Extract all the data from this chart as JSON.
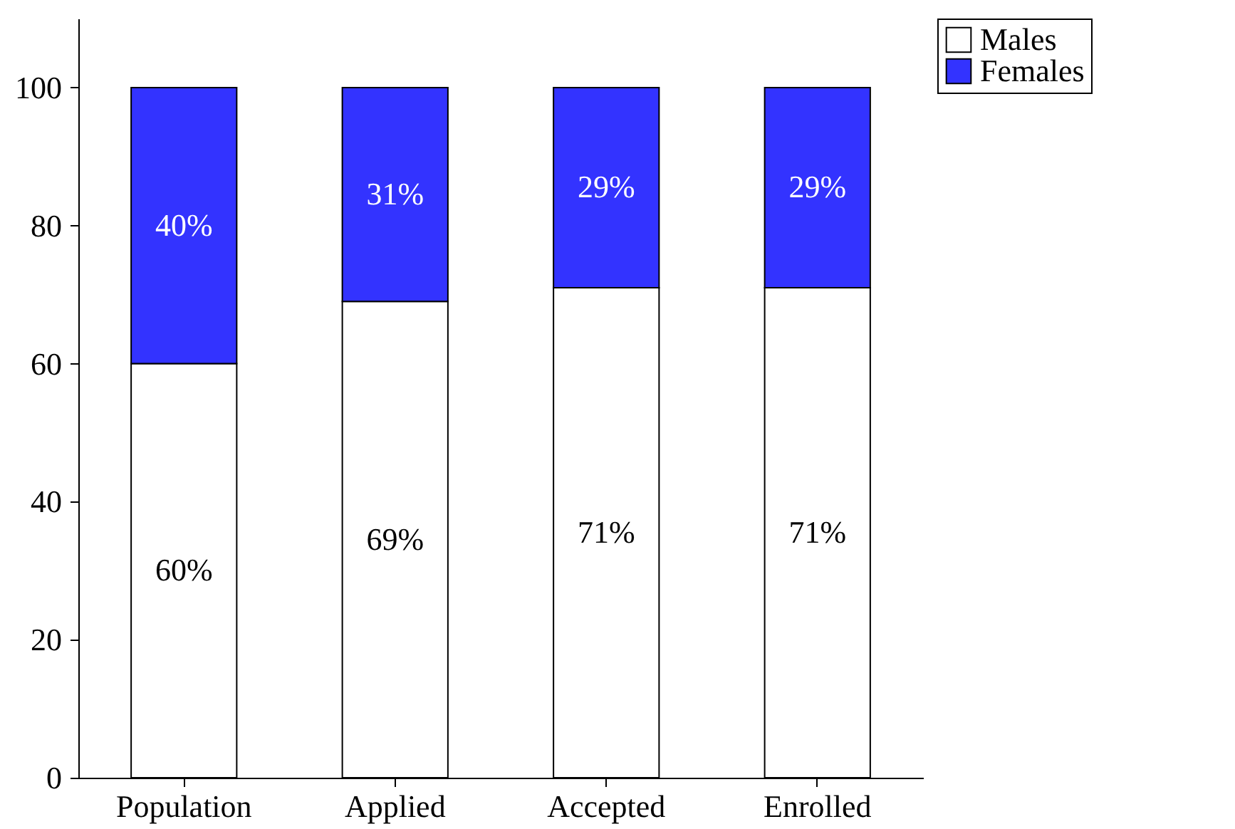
{
  "chart_data": {
    "type": "bar",
    "stacked": true,
    "categories": [
      "Population",
      "Applied",
      "Accepted",
      "Enrolled"
    ],
    "series": [
      {
        "name": "Males",
        "color": "#ffffff",
        "values": [
          60,
          69,
          71,
          71
        ],
        "value_labels": [
          "60%",
          "69%",
          "71%",
          "71%"
        ]
      },
      {
        "name": "Females",
        "color": "#3333ff",
        "values": [
          40,
          31,
          29,
          29
        ],
        "value_labels": [
          "40%",
          "31%",
          "29%",
          "29%"
        ]
      }
    ],
    "ylim": [
      0,
      110
    ],
    "yticks": [
      0,
      20,
      40,
      60,
      80,
      100
    ],
    "grid": false,
    "legend": "top right"
  }
}
